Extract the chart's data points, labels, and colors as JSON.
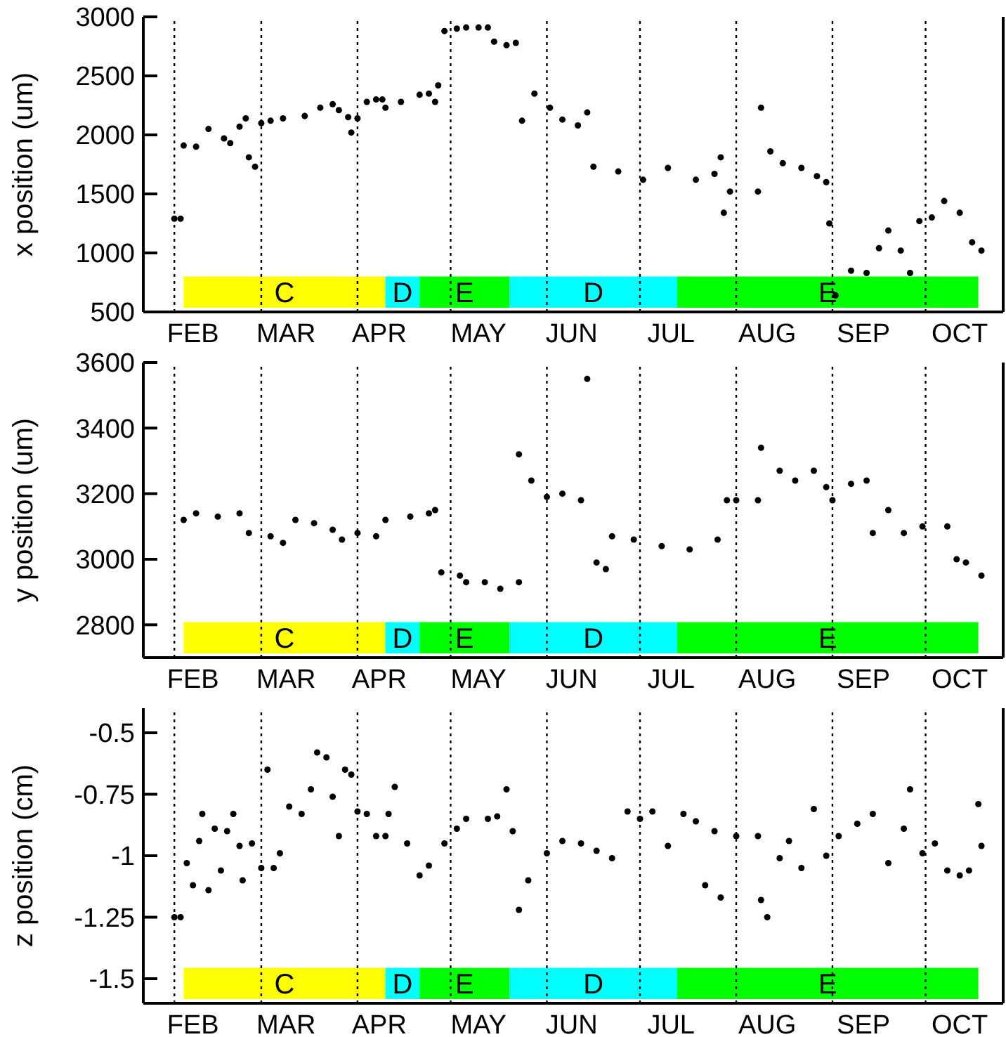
{
  "chart_data": [
    {
      "type": "scatter",
      "ylabel": "x position (um)",
      "marker": "circle",
      "xlim": [
        "--01-22",
        "--10-26"
      ],
      "ylim": [
        500,
        3000
      ],
      "yticks": [
        500,
        1000,
        1500,
        2000,
        2500,
        3000
      ],
      "xticks": [
        {
          "value": "--02-07",
          "label": "FEB"
        },
        {
          "value": "--03-09",
          "label": "MAR"
        },
        {
          "value": "--04-08",
          "label": "APR"
        },
        {
          "value": "--05-10",
          "label": "MAY"
        },
        {
          "value": "--06-09",
          "label": "JUN"
        },
        {
          "value": "--07-11",
          "label": "JUL"
        },
        {
          "value": "--08-11",
          "label": "AUG"
        },
        {
          "value": "--09-11",
          "label": "SEP"
        },
        {
          "value": "--10-12",
          "label": "OCT"
        }
      ],
      "ref_lines": [
        {
          "axis": "x",
          "value": "--02-01",
          "line_style": "dotted"
        },
        {
          "axis": "x",
          "value": "--03-01",
          "line_style": "dotted"
        },
        {
          "axis": "x",
          "value": "--04-01",
          "line_style": "dotted"
        },
        {
          "axis": "x",
          "value": "--05-01",
          "line_style": "dotted"
        },
        {
          "axis": "x",
          "value": "--06-01",
          "line_style": "dotted"
        },
        {
          "axis": "x",
          "value": "--07-01",
          "line_style": "dotted"
        },
        {
          "axis": "x",
          "value": "--08-01",
          "line_style": "dotted"
        },
        {
          "axis": "x",
          "value": "--09-01",
          "line_style": "dotted"
        },
        {
          "axis": "x",
          "value": "--10-01",
          "line_style": "dotted"
        }
      ],
      "bands": [
        {
          "axis": "x",
          "from": "--02-04",
          "to": "--04-10",
          "label": "C",
          "color": "#ffff00"
        },
        {
          "axis": "x",
          "from": "--04-10",
          "to": "--04-21",
          "label": "D",
          "color": "#00ffff"
        },
        {
          "axis": "x",
          "from": "--04-21",
          "to": "--05-20",
          "label": "E",
          "color": "#00ff00"
        },
        {
          "axis": "x",
          "from": "--05-20",
          "to": "--07-13",
          "label": "D",
          "color": "#00ffff"
        },
        {
          "axis": "x",
          "from": "--07-13",
          "to": "--10-18",
          "label": "E",
          "color": "#00ff00"
        }
      ],
      "series": [
        {
          "color": "#000000",
          "x": [
            "--02-01",
            "--02-03",
            "--02-04",
            "--02-08",
            "--02-12",
            "--02-17",
            "--02-19",
            "--02-22",
            "--02-24",
            "--02-25",
            "--02-27",
            "--03-01",
            "--03-04",
            "--03-08",
            "--03-15",
            "--03-20",
            "--03-24",
            "--03-26",
            "--03-29",
            "--03-30",
            "--04-01",
            "--04-04",
            "--04-07",
            "--04-09",
            "--04-10",
            "--04-15",
            "--04-21",
            "--04-24",
            "--04-26",
            "--04-27",
            "--04-29",
            "--05-03",
            "--05-06",
            "--05-10",
            "--05-13",
            "--05-15",
            "--05-19",
            "--05-22",
            "--05-24",
            "--05-28",
            "--06-02",
            "--06-06",
            "--06-11",
            "--06-14",
            "--06-16",
            "--06-24",
            "--07-02",
            "--07-10",
            "--07-19",
            "--07-25",
            "--07-27",
            "--07-28",
            "--07-30",
            "--08-08",
            "--08-09",
            "--08-12",
            "--08-16",
            "--08-22",
            "--08-27",
            "--08-30",
            "--08-31",
            "--09-02",
            "--09-07",
            "--09-12",
            "--09-16",
            "--09-19",
            "--09-23",
            "--09-26",
            "--09-29",
            "--10-03",
            "--10-07",
            "--10-12",
            "--10-16",
            "--10-19"
          ],
          "values": [
            1290,
            1290,
            1910,
            1900,
            2050,
            1970,
            1930,
            2070,
            2140,
            1810,
            1730,
            2100,
            2120,
            2140,
            2160,
            2230,
            2260,
            2210,
            2150,
            2020,
            2140,
            2280,
            2300,
            2300,
            2230,
            2280,
            2340,
            2350,
            2280,
            2420,
            2880,
            2900,
            2910,
            2910,
            2910,
            2790,
            2760,
            2780,
            2120,
            2350,
            2230,
            2130,
            2080,
            2190,
            1730,
            1690,
            1620,
            1720,
            1620,
            1670,
            1810,
            1340,
            1520,
            1520,
            2230,
            1860,
            1760,
            1720,
            1650,
            1600,
            1250,
            640,
            850,
            830,
            1040,
            1190,
            1020,
            830,
            1270,
            1300,
            1440,
            1340,
            1090,
            1020
          ]
        }
      ]
    },
    {
      "type": "scatter",
      "ylabel": "y position (um)",
      "marker": "circle",
      "xlim": [
        "--01-22",
        "--10-26"
      ],
      "ylim": [
        2700,
        3600
      ],
      "yticks": [
        2800,
        3000,
        3200,
        3400,
        3600
      ],
      "xticks": [
        {
          "value": "--02-07",
          "label": "FEB"
        },
        {
          "value": "--03-09",
          "label": "MAR"
        },
        {
          "value": "--04-08",
          "label": "APR"
        },
        {
          "value": "--05-10",
          "label": "MAY"
        },
        {
          "value": "--06-09",
          "label": "JUN"
        },
        {
          "value": "--07-11",
          "label": "JUL"
        },
        {
          "value": "--08-11",
          "label": "AUG"
        },
        {
          "value": "--09-11",
          "label": "SEP"
        },
        {
          "value": "--10-12",
          "label": "OCT"
        }
      ],
      "ref_lines": [
        {
          "axis": "x",
          "value": "--02-01",
          "line_style": "dotted"
        },
        {
          "axis": "x",
          "value": "--03-01",
          "line_style": "dotted"
        },
        {
          "axis": "x",
          "value": "--04-01",
          "line_style": "dotted"
        },
        {
          "axis": "x",
          "value": "--05-01",
          "line_style": "dotted"
        },
        {
          "axis": "x",
          "value": "--06-01",
          "line_style": "dotted"
        },
        {
          "axis": "x",
          "value": "--07-01",
          "line_style": "dotted"
        },
        {
          "axis": "x",
          "value": "--08-01",
          "line_style": "dotted"
        },
        {
          "axis": "x",
          "value": "--09-01",
          "line_style": "dotted"
        },
        {
          "axis": "x",
          "value": "--10-01",
          "line_style": "dotted"
        }
      ],
      "bands": [
        {
          "axis": "x",
          "from": "--02-04",
          "to": "--04-10",
          "label": "C",
          "color": "#ffff00"
        },
        {
          "axis": "x",
          "from": "--04-10",
          "to": "--04-21",
          "label": "D",
          "color": "#00ffff"
        },
        {
          "axis": "x",
          "from": "--04-21",
          "to": "--05-20",
          "label": "E",
          "color": "#00ff00"
        },
        {
          "axis": "x",
          "from": "--05-20",
          "to": "--07-13",
          "label": "D",
          "color": "#00ffff"
        },
        {
          "axis": "x",
          "from": "--07-13",
          "to": "--10-18",
          "label": "E",
          "color": "#00ff00"
        }
      ],
      "series": [
        {
          "color": "#000000",
          "x": [
            "--02-04",
            "--02-08",
            "--02-15",
            "--02-22",
            "--02-25",
            "--03-04",
            "--03-08",
            "--03-12",
            "--03-18",
            "--03-24",
            "--03-27",
            "--04-01",
            "--04-07",
            "--04-10",
            "--04-18",
            "--04-24",
            "--04-26",
            "--04-28",
            "--05-04",
            "--05-06",
            "--05-12",
            "--05-17",
            "--05-23",
            "--05-23",
            "--05-27",
            "--06-01",
            "--06-06",
            "--06-12",
            "--06-14",
            "--06-17",
            "--06-20",
            "--06-22",
            "--06-29",
            "--07-08",
            "--07-17",
            "--07-26",
            "--07-29",
            "--08-01",
            "--08-08",
            "--08-09",
            "--08-15",
            "--08-20",
            "--08-26",
            "--08-30",
            "--09-01",
            "--09-07",
            "--09-12",
            "--09-14",
            "--09-19",
            "--09-24",
            "--09-30",
            "--10-08",
            "--10-11",
            "--10-14",
            "--10-19"
          ],
          "values": [
            3120,
            3140,
            3130,
            3140,
            3080,
            3070,
            3050,
            3120,
            3110,
            3090,
            3060,
            3080,
            3070,
            3120,
            3130,
            3140,
            3150,
            2960,
            2950,
            2930,
            2930,
            2910,
            2930,
            3320,
            3240,
            3190,
            3200,
            3180,
            3550,
            2990,
            2970,
            3070,
            3060,
            3040,
            3030,
            3060,
            3180,
            3180,
            3180,
            3340,
            3270,
            3240,
            3270,
            3220,
            3180,
            3230,
            3240,
            3080,
            3150,
            3080,
            3100,
            3100,
            3000,
            2990,
            2950
          ]
        }
      ]
    },
    {
      "type": "scatter",
      "ylabel": "z position (cm)",
      "marker": "circle",
      "xlim": [
        "--01-22",
        "--10-26"
      ],
      "ylim": [
        -1.6,
        -0.4
      ],
      "yticks": [
        -1.5,
        -1.25,
        -1,
        -0.75,
        -0.5
      ],
      "xticks": [
        {
          "value": "--02-07",
          "label": "FEB"
        },
        {
          "value": "--03-09",
          "label": "MAR"
        },
        {
          "value": "--04-08",
          "label": "APR"
        },
        {
          "value": "--05-10",
          "label": "MAY"
        },
        {
          "value": "--06-09",
          "label": "JUN"
        },
        {
          "value": "--07-11",
          "label": "JUL"
        },
        {
          "value": "--08-11",
          "label": "AUG"
        },
        {
          "value": "--09-11",
          "label": "SEP"
        },
        {
          "value": "--10-12",
          "label": "OCT"
        }
      ],
      "ref_lines": [
        {
          "axis": "x",
          "value": "--02-01",
          "line_style": "dotted"
        },
        {
          "axis": "x",
          "value": "--03-01",
          "line_style": "dotted"
        },
        {
          "axis": "x",
          "value": "--04-01",
          "line_style": "dotted"
        },
        {
          "axis": "x",
          "value": "--05-01",
          "line_style": "dotted"
        },
        {
          "axis": "x",
          "value": "--06-01",
          "line_style": "dotted"
        },
        {
          "axis": "x",
          "value": "--07-01",
          "line_style": "dotted"
        },
        {
          "axis": "x",
          "value": "--08-01",
          "line_style": "dotted"
        },
        {
          "axis": "x",
          "value": "--09-01",
          "line_style": "dotted"
        },
        {
          "axis": "x",
          "value": "--10-01",
          "line_style": "dotted"
        }
      ],
      "bands": [
        {
          "axis": "x",
          "from": "--02-04",
          "to": "--04-10",
          "label": "C",
          "color": "#ffff00"
        },
        {
          "axis": "x",
          "from": "--04-10",
          "to": "--04-21",
          "label": "D",
          "color": "#00ffff"
        },
        {
          "axis": "x",
          "from": "--04-21",
          "to": "--05-20",
          "label": "E",
          "color": "#00ff00"
        },
        {
          "axis": "x",
          "from": "--05-20",
          "to": "--07-13",
          "label": "D",
          "color": "#00ffff"
        },
        {
          "axis": "x",
          "from": "--07-13",
          "to": "--10-18",
          "label": "E",
          "color": "#00ff00"
        }
      ],
      "series": [
        {
          "color": "#000000",
          "x": [
            "--02-01",
            "--02-03",
            "--02-05",
            "--02-07",
            "--02-09",
            "--02-10",
            "--02-12",
            "--02-14",
            "--02-16",
            "--02-18",
            "--02-20",
            "--02-22",
            "--02-23",
            "--02-26",
            "--03-01",
            "--03-03",
            "--03-05",
            "--03-07",
            "--03-10",
            "--03-14",
            "--03-17",
            "--03-19",
            "--03-22",
            "--03-24",
            "--03-26",
            "--03-28",
            "--03-30",
            "--04-01",
            "--04-04",
            "--04-07",
            "--04-10",
            "--04-11",
            "--04-13",
            "--04-17",
            "--04-21",
            "--04-24",
            "--04-29",
            "--05-03",
            "--05-06",
            "--05-13",
            "--05-16",
            "--05-19",
            "--05-21",
            "--05-23",
            "--05-26",
            "--06-01",
            "--06-06",
            "--06-12",
            "--06-17",
            "--06-22",
            "--06-27",
            "--07-01",
            "--07-05",
            "--07-10",
            "--07-15",
            "--07-19",
            "--07-22",
            "--07-25",
            "--07-27",
            "--08-01",
            "--08-08",
            "--08-09",
            "--08-11",
            "--08-15",
            "--08-18",
            "--08-22",
            "--08-26",
            "--08-30",
            "--09-03",
            "--09-09",
            "--09-14",
            "--09-19",
            "--09-24",
            "--09-26",
            "--09-30",
            "--10-04",
            "--10-08",
            "--10-12",
            "--10-15",
            "--10-18",
            "--10-19"
          ],
          "values": [
            -1.25,
            -1.25,
            -1.03,
            -1.12,
            -0.94,
            -0.83,
            -1.14,
            -0.89,
            -1.06,
            -0.9,
            -0.83,
            -0.96,
            -1.1,
            -0.95,
            -1.05,
            -0.65,
            -1.05,
            -0.99,
            -0.8,
            -0.83,
            -0.73,
            -0.58,
            -0.6,
            -0.76,
            -0.92,
            -0.65,
            -0.67,
            -0.82,
            -0.83,
            -0.92,
            -0.92,
            -0.83,
            -0.72,
            -0.95,
            -1.08,
            -1.04,
            -0.95,
            -0.89,
            -0.85,
            -0.85,
            -0.84,
            -0.73,
            -0.9,
            -1.22,
            -1.1,
            -0.99,
            -0.94,
            -0.95,
            -0.98,
            -1.01,
            -0.82,
            -0.85,
            -0.82,
            -0.96,
            -0.83,
            -0.86,
            -1.12,
            -0.9,
            -1.17,
            -0.92,
            -0.92,
            -1.18,
            -1.25,
            -1.01,
            -0.94,
            -1.05,
            -0.81,
            -1.0,
            -0.92,
            -0.87,
            -0.83,
            -1.03,
            -0.89,
            -0.73,
            -0.99,
            -0.95,
            -1.06,
            -1.08,
            -1.06,
            -0.79,
            -0.96
          ]
        }
      ]
    }
  ]
}
